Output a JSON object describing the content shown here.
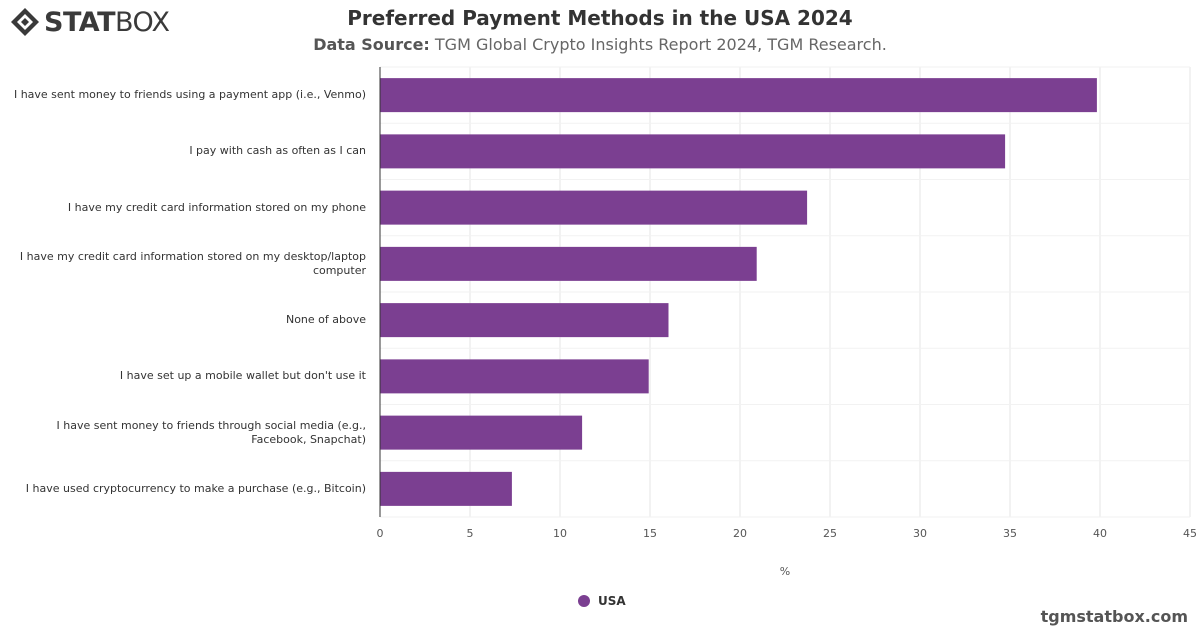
{
  "logo": {
    "text_bold": "STAT",
    "text_light": "BOX",
    "icon": "statbox-logo-icon"
  },
  "header": {
    "title": "Preferred Payment Methods in the USA 2024",
    "source_label": "Data Source:",
    "source_text": "TGM Global Crypto Insights Report 2024, TGM Research."
  },
  "credit": "tgmstatbox.com",
  "colors": {
    "bar": "#7b3f91",
    "grid": "#e6e6e6",
    "axis": "#333333"
  },
  "chart_data": {
    "type": "bar",
    "orientation": "horizontal",
    "categories": [
      "I have sent money to friends using a payment app (i.e., Venmo)",
      "I pay with cash as often as I can",
      "I have my credit card information stored on my phone",
      "I have my credit card information stored on my desktop/laptop computer",
      "None of above",
      "I have set up a mobile wallet but don't use it",
      "I have sent money to friends through social media (e.g., Facebook, Snapchat)",
      "I have used cryptocurrency to make a purchase (e.g., Bitcoin)"
    ],
    "series": [
      {
        "name": "USA",
        "values": [
          39.8,
          34.7,
          23.7,
          20.9,
          16.0,
          14.9,
          11.2,
          7.3
        ]
      }
    ],
    "xlabel": "%",
    "ylabel": "",
    "xlim": [
      0,
      45
    ],
    "xticks": [
      0,
      5,
      10,
      15,
      20,
      25,
      30,
      35,
      40,
      45
    ],
    "grid": true,
    "legend_position": "bottom-center"
  }
}
